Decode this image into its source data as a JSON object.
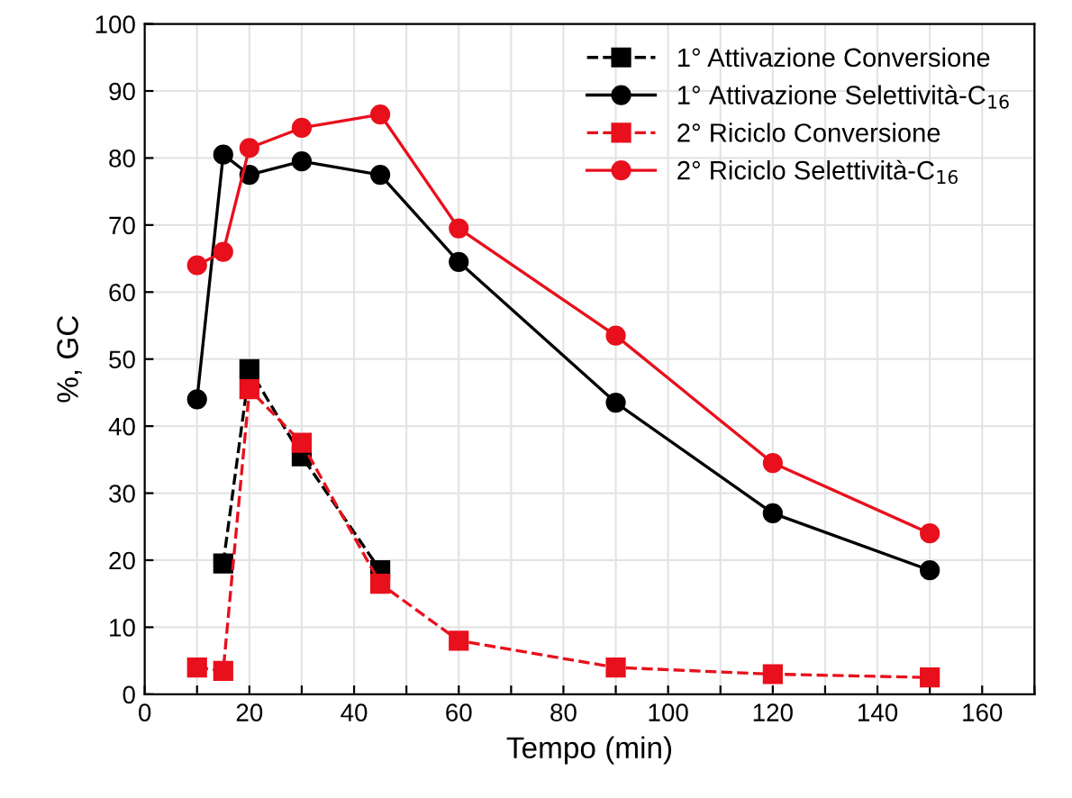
{
  "chart_data": {
    "type": "line",
    "xlabel": "Tempo (min)",
    "ylabel": "%, GC",
    "xlim": [
      0,
      170
    ],
    "ylim": [
      0,
      100
    ],
    "xticks": [
      0,
      {
        "value": 10,
        "label": null
      },
      20,
      {
        "value": 30,
        "label": null
      },
      40,
      {
        "value": 50,
        "label": null
      },
      60,
      {
        "value": 70,
        "label": null
      },
      80,
      {
        "value": 90,
        "label": null
      },
      100,
      {
        "value": 110,
        "label": null
      },
      120,
      {
        "value": 130,
        "label": null
      },
      140,
      {
        "value": 150,
        "label": null
      },
      160,
      {
        "value": 170,
        "label": null
      }
    ],
    "yticks": [
      0,
      10,
      20,
      30,
      40,
      50,
      60,
      70,
      80,
      90,
      100
    ],
    "grid": true,
    "legend": "top right",
    "series": [
      {
        "name": "1° Attivazione Conversione",
        "color": "#000000",
        "marker": "square",
        "line_style": "dashed",
        "x": [
          15,
          20,
          30,
          45
        ],
        "values": [
          19.5,
          48.5,
          35.5,
          18.5
        ]
      },
      {
        "name": "1° Attivazione Selettività-C$_{16}$",
        "color": "#000000",
        "marker": "circle",
        "line_style": "solid",
        "x": [
          10,
          15,
          20,
          30,
          45,
          60,
          90,
          120,
          150
        ],
        "values": [
          44,
          80.5,
          77.5,
          79.5,
          77.5,
          64.5,
          43.5,
          27,
          18.5
        ]
      },
      {
        "name": "2° Riciclo Conversione",
        "color": "#e8101c",
        "marker": "square",
        "line_style": "dashed",
        "x": [
          10,
          15,
          20,
          30,
          45,
          60,
          90,
          120,
          150
        ],
        "values": [
          4,
          3.5,
          45.5,
          37.5,
          16.5,
          8,
          4,
          3,
          2.5
        ]
      },
      {
        "name": "2° Riciclo Selettività-C$_{16}$",
        "color": "#e8101c",
        "marker": "circle",
        "line_style": "solid",
        "x": [
          10,
          15,
          20,
          30,
          45,
          60,
          90,
          120,
          150
        ],
        "values": [
          64,
          66,
          81.5,
          84.5,
          86.5,
          69.5,
          53.5,
          34.5,
          24
        ]
      }
    ]
  }
}
